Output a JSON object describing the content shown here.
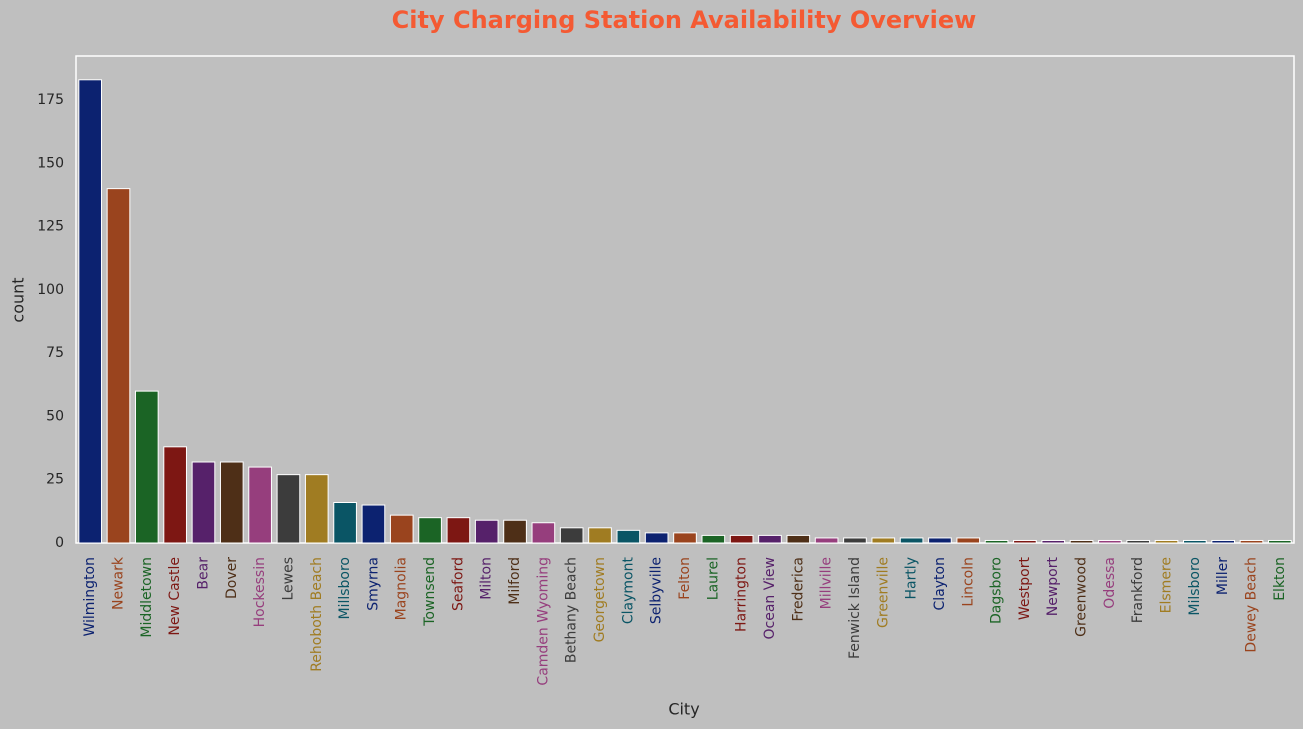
{
  "chart_data": {
    "type": "bar",
    "title": "City Charging Station Availability Overview",
    "xlabel": "City",
    "ylabel": "count",
    "categories": [
      "Wilmington",
      "Newark",
      "Middletown",
      "New Castle",
      "Bear",
      "Dover",
      "Hockessin",
      "Lewes",
      "Rehoboth Beach",
      "Millsboro",
      "Smyrna",
      "Magnolia",
      "Townsend",
      "Seaford",
      "Milton",
      "Milford",
      "Camden Wyoming",
      "Bethany Beach",
      "Georgetown",
      "Claymont",
      "Selbyville",
      "Felton",
      "Laurel",
      "Harrington",
      "Ocean View",
      "Frederica",
      "Millville",
      "Fenwick Island",
      "Greenville",
      "Hartly",
      "Clayton",
      "Lincoln",
      "Dagsboro",
      "Westport",
      "Newport",
      "Greenwood",
      "Odessa",
      "Frankford",
      "Elsmere",
      "Milsboro",
      "Miller",
      "Dewey Beach",
      "Elkton"
    ],
    "values": [
      183,
      140,
      60,
      38,
      32,
      32,
      30,
      27,
      27,
      16,
      15,
      11,
      10,
      10,
      9,
      9,
      8,
      6,
      6,
      5,
      4,
      4,
      3,
      3,
      3,
      3,
      2,
      2,
      2,
      2,
      2,
      2,
      1,
      1,
      1,
      1,
      1,
      1,
      1,
      1,
      1,
      1,
      1
    ],
    "palette": [
      "#0c2270",
      "#9a441e",
      "#1b6425",
      "#7d1713",
      "#56216a",
      "#4e2f17",
      "#963e7d",
      "#3c3c3c",
      "#a07c22",
      "#0a5565"
    ],
    "ylim": [
      0,
      192.4
    ],
    "yticks": [
      0,
      25,
      50,
      75,
      100,
      125,
      150,
      175
    ],
    "grid": false
  }
}
